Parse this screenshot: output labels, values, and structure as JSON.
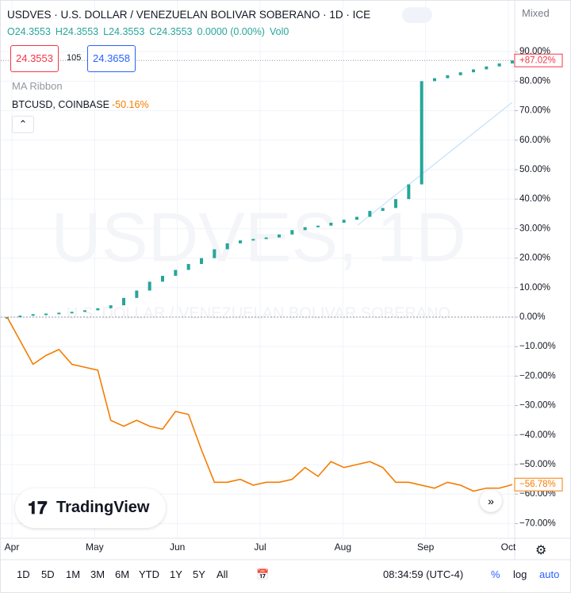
{
  "header": {
    "title": "USDVES · U.S. DOLLAR / VENEZUELAN BOLIVAR SOBERANO · 1D · ICE",
    "ohlc": [
      "O24.3553",
      "H24.3553",
      "L24.3553",
      "C24.3553",
      "0.0000 (0.00%)",
      "Vol0"
    ],
    "bid": "24.3553",
    "spread": "105",
    "ask": "24.3658",
    "indicator": "MA Ribbon",
    "compare_symbol": "BTCUSD, COINBASE",
    "compare_change": "-50.16%",
    "scale_mode": "Mixed"
  },
  "watermark": {
    "symbol": "USDVES, 1D",
    "description": "U.S. DOLLAR / VENEZUELAN BOLIVAR SOBERANO"
  },
  "logo": "TradingView",
  "toolbar": {
    "ranges": [
      "1D",
      "5D",
      "1M",
      "3M",
      "6M",
      "YTD",
      "1Y",
      "5Y",
      "All"
    ],
    "time": "08:34:59 (UTC-4)",
    "percent": "%",
    "log": "log",
    "auto": "auto"
  },
  "chart_data": {
    "type": "candlestick",
    "x_labels": [
      "Apr",
      "May",
      "Jun",
      "Jul",
      "Aug",
      "Sep",
      "Oct"
    ],
    "ylim": [
      -75,
      93
    ],
    "yticks": [
      {
        "value": -70,
        "label": "−70.00%"
      },
      {
        "value": -60,
        "label": "−60.00%"
      },
      {
        "value": -50,
        "label": "−50.00%"
      },
      {
        "value": -40,
        "label": "−40.00%"
      },
      {
        "value": -30,
        "label": "−30.00%"
      },
      {
        "value": -20,
        "label": "−20.00%"
      },
      {
        "value": -10,
        "label": "−10.00%"
      },
      {
        "value": 0,
        "label": "0.00%"
      },
      {
        "value": 10,
        "label": "10.00%"
      },
      {
        "value": 20,
        "label": "20.00%"
      },
      {
        "value": 30,
        "label": "30.00%"
      },
      {
        "value": 40,
        "label": "40.00%"
      },
      {
        "value": 50,
        "label": "50.00%"
      },
      {
        "value": 60,
        "label": "60.00%"
      },
      {
        "value": 70,
        "label": "70.00%"
      },
      {
        "value": 80,
        "label": "80.00%"
      },
      {
        "value": 90,
        "label": "90.00%"
      }
    ],
    "grid": true,
    "series": [
      {
        "name": "USDVES",
        "color": "#26a69a",
        "style": "candles",
        "last_value_label": "+87.02%",
        "label_color": "#f23645",
        "values": [
          0,
          0.5,
          1,
          1.2,
          1.5,
          1.8,
          2.3,
          3,
          4,
          6.5,
          9,
          12,
          14,
          16,
          18,
          20,
          23,
          25,
          26,
          26.5,
          27,
          28,
          29.5,
          30.5,
          31,
          32,
          33,
          34,
          36,
          37,
          40,
          45,
          80,
          81,
          82,
          83,
          84,
          85,
          86,
          87.02
        ]
      },
      {
        "name": "BTCUSD, COINBASE",
        "color": "#f57c00",
        "style": "line",
        "last_value_label": "−56.78%",
        "label_color": "#f57c00",
        "values": [
          0,
          -8,
          -16,
          -13,
          -11,
          -16,
          -17,
          -18,
          -35,
          -37,
          -35,
          -37,
          -38,
          -32,
          -33,
          -45,
          -56,
          -56,
          -55,
          -57,
          -56,
          -56,
          -55,
          -51,
          -54,
          -49,
          -51,
          -50,
          -49,
          -51,
          -56,
          -56,
          -57,
          -58,
          -56,
          -57,
          -59,
          -58,
          -58,
          -56.78
        ]
      }
    ]
  }
}
